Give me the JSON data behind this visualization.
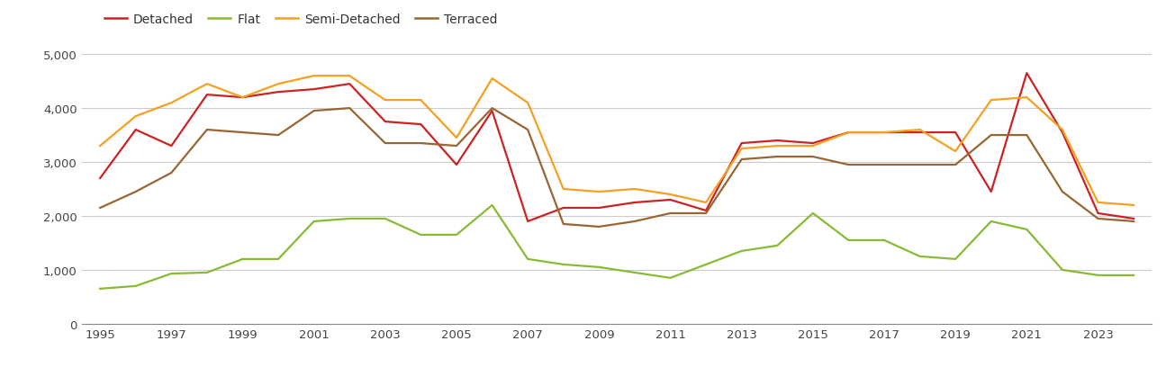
{
  "years": [
    1995,
    1996,
    1997,
    1998,
    1999,
    2000,
    2001,
    2002,
    2003,
    2004,
    2005,
    2006,
    2007,
    2008,
    2009,
    2010,
    2011,
    2012,
    2013,
    2014,
    2015,
    2016,
    2017,
    2018,
    2019,
    2020,
    2021,
    2022,
    2023,
    2024
  ],
  "detached": [
    2700,
    3600,
    3300,
    4250,
    4200,
    4300,
    4350,
    4450,
    3750,
    3700,
    2950,
    3950,
    1900,
    2150,
    2150,
    2250,
    2300,
    2100,
    3350,
    3400,
    3350,
    3550,
    3550,
    3550,
    3550,
    2450,
    4650,
    3550,
    2050,
    1950
  ],
  "flat": [
    650,
    700,
    930,
    950,
    1200,
    1200,
    1900,
    1950,
    1950,
    1650,
    1650,
    2200,
    1200,
    1100,
    1050,
    950,
    850,
    1100,
    1350,
    1450,
    2050,
    1550,
    1550,
    1250,
    1200,
    1900,
    1750,
    1000,
    900,
    900
  ],
  "semi_detached": [
    3300,
    3850,
    4100,
    4450,
    4200,
    4450,
    4600,
    4600,
    4150,
    4150,
    3450,
    4550,
    4100,
    2500,
    2450,
    2500,
    2400,
    2250,
    3250,
    3300,
    3300,
    3550,
    3550,
    3600,
    3200,
    4150,
    4200,
    3600,
    2250,
    2200
  ],
  "terraced": [
    2150,
    2450,
    2800,
    3600,
    3550,
    3500,
    3950,
    4000,
    3350,
    3350,
    3300,
    4000,
    3600,
    1850,
    1800,
    1900,
    2050,
    2050,
    3050,
    3100,
    3100,
    2950,
    2950,
    2950,
    2950,
    3500,
    3500,
    2450,
    1950,
    1900
  ],
  "colors": {
    "detached": "#cc2222",
    "flat": "#88bb33",
    "semi_detached": "#f5a020",
    "terraced": "#996633"
  },
  "ylim": [
    0,
    5200
  ],
  "yticks": [
    0,
    1000,
    2000,
    3000,
    4000,
    5000
  ],
  "ytick_labels": [
    "0",
    "1,000",
    "2,000",
    "3,000",
    "4,000",
    "5,000"
  ],
  "xtick_years": [
    1995,
    1997,
    1999,
    2001,
    2003,
    2005,
    2007,
    2009,
    2011,
    2013,
    2015,
    2017,
    2019,
    2021,
    2023
  ],
  "background_color": "#ffffff",
  "grid_color": "#cccccc",
  "linewidth": 1.6
}
